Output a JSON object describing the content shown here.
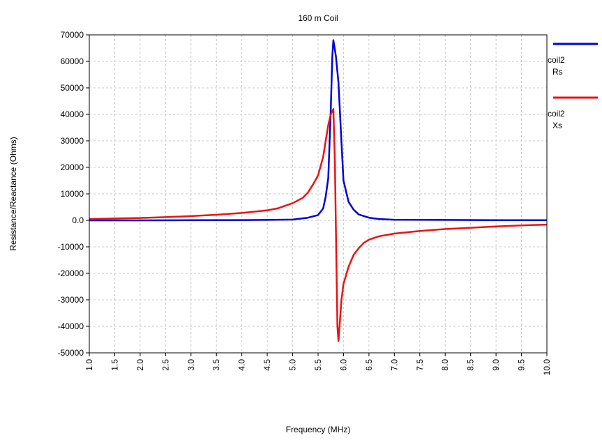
{
  "chart_data": {
    "type": "line",
    "title": "160 m Coil",
    "xlabel": "Frequency (MHz)",
    "ylabel": "Resistance/Reactance (Ohms)",
    "xlim": [
      1.0,
      10.0
    ],
    "ylim": [
      -50000,
      70000
    ],
    "x_ticks": [
      "1.0",
      "1.5",
      "2.0",
      "2.5",
      "3.0",
      "3.5",
      "4.0",
      "4.5",
      "5.0",
      "5.5",
      "6.0",
      "6.5",
      "7.0",
      "7.5",
      "8.0",
      "8.5",
      "9.0",
      "9.5",
      "10.0"
    ],
    "y_ticks": [
      "70000",
      "60000",
      "50000",
      "40000",
      "30000",
      "20000",
      "10000",
      "0.0",
      "-10000",
      "-20000",
      "-30000",
      "-40000",
      "-50000"
    ],
    "grid": true,
    "legend_position": "right",
    "series": [
      {
        "name": "coil2 Rs",
        "legend_line1": "coil2",
        "legend_line2": "Rs",
        "color": "#0000dd",
        "x": [
          1.0,
          2.0,
          3.0,
          4.0,
          4.5,
          5.0,
          5.3,
          5.5,
          5.6,
          5.65,
          5.7,
          5.75,
          5.78,
          5.8,
          5.85,
          5.9,
          5.95,
          6.0,
          6.1,
          6.2,
          6.3,
          6.5,
          6.7,
          7.0,
          8.0,
          9.0,
          10.0
        ],
        "y": [
          0,
          0,
          50,
          100,
          150,
          300,
          1000,
          2000,
          4500,
          9000,
          16000,
          42000,
          62000,
          68000,
          62000,
          52000,
          33000,
          15000,
          7000,
          4000,
          2200,
          1000,
          500,
          250,
          150,
          80,
          50
        ]
      },
      {
        "name": "coil2 Xs",
        "legend_line1": "coil2",
        "legend_line2": "Xs",
        "color": "#ee1111",
        "x": [
          1.0,
          1.5,
          2.0,
          2.5,
          3.0,
          3.5,
          4.0,
          4.5,
          4.7,
          5.0,
          5.2,
          5.3,
          5.4,
          5.5,
          5.6,
          5.65,
          5.7,
          5.75,
          5.8,
          5.83,
          5.86,
          5.88,
          5.9,
          5.93,
          5.96,
          6.0,
          6.1,
          6.2,
          6.3,
          6.4,
          6.5,
          6.7,
          7.0,
          7.5,
          8.0,
          8.5,
          9.0,
          9.5,
          10.0
        ],
        "y": [
          500,
          700,
          900,
          1200,
          1600,
          2100,
          2800,
          3800,
          4500,
          6500,
          8500,
          10500,
          13500,
          17000,
          24000,
          30000,
          36000,
          40000,
          42000,
          22000,
          -15000,
          -40000,
          -45500,
          -38000,
          -30000,
          -24000,
          -17500,
          -13000,
          -10500,
          -8500,
          -7300,
          -6000,
          -5000,
          -4000,
          -3300,
          -2800,
          -2300,
          -1900,
          -1600
        ]
      }
    ]
  }
}
